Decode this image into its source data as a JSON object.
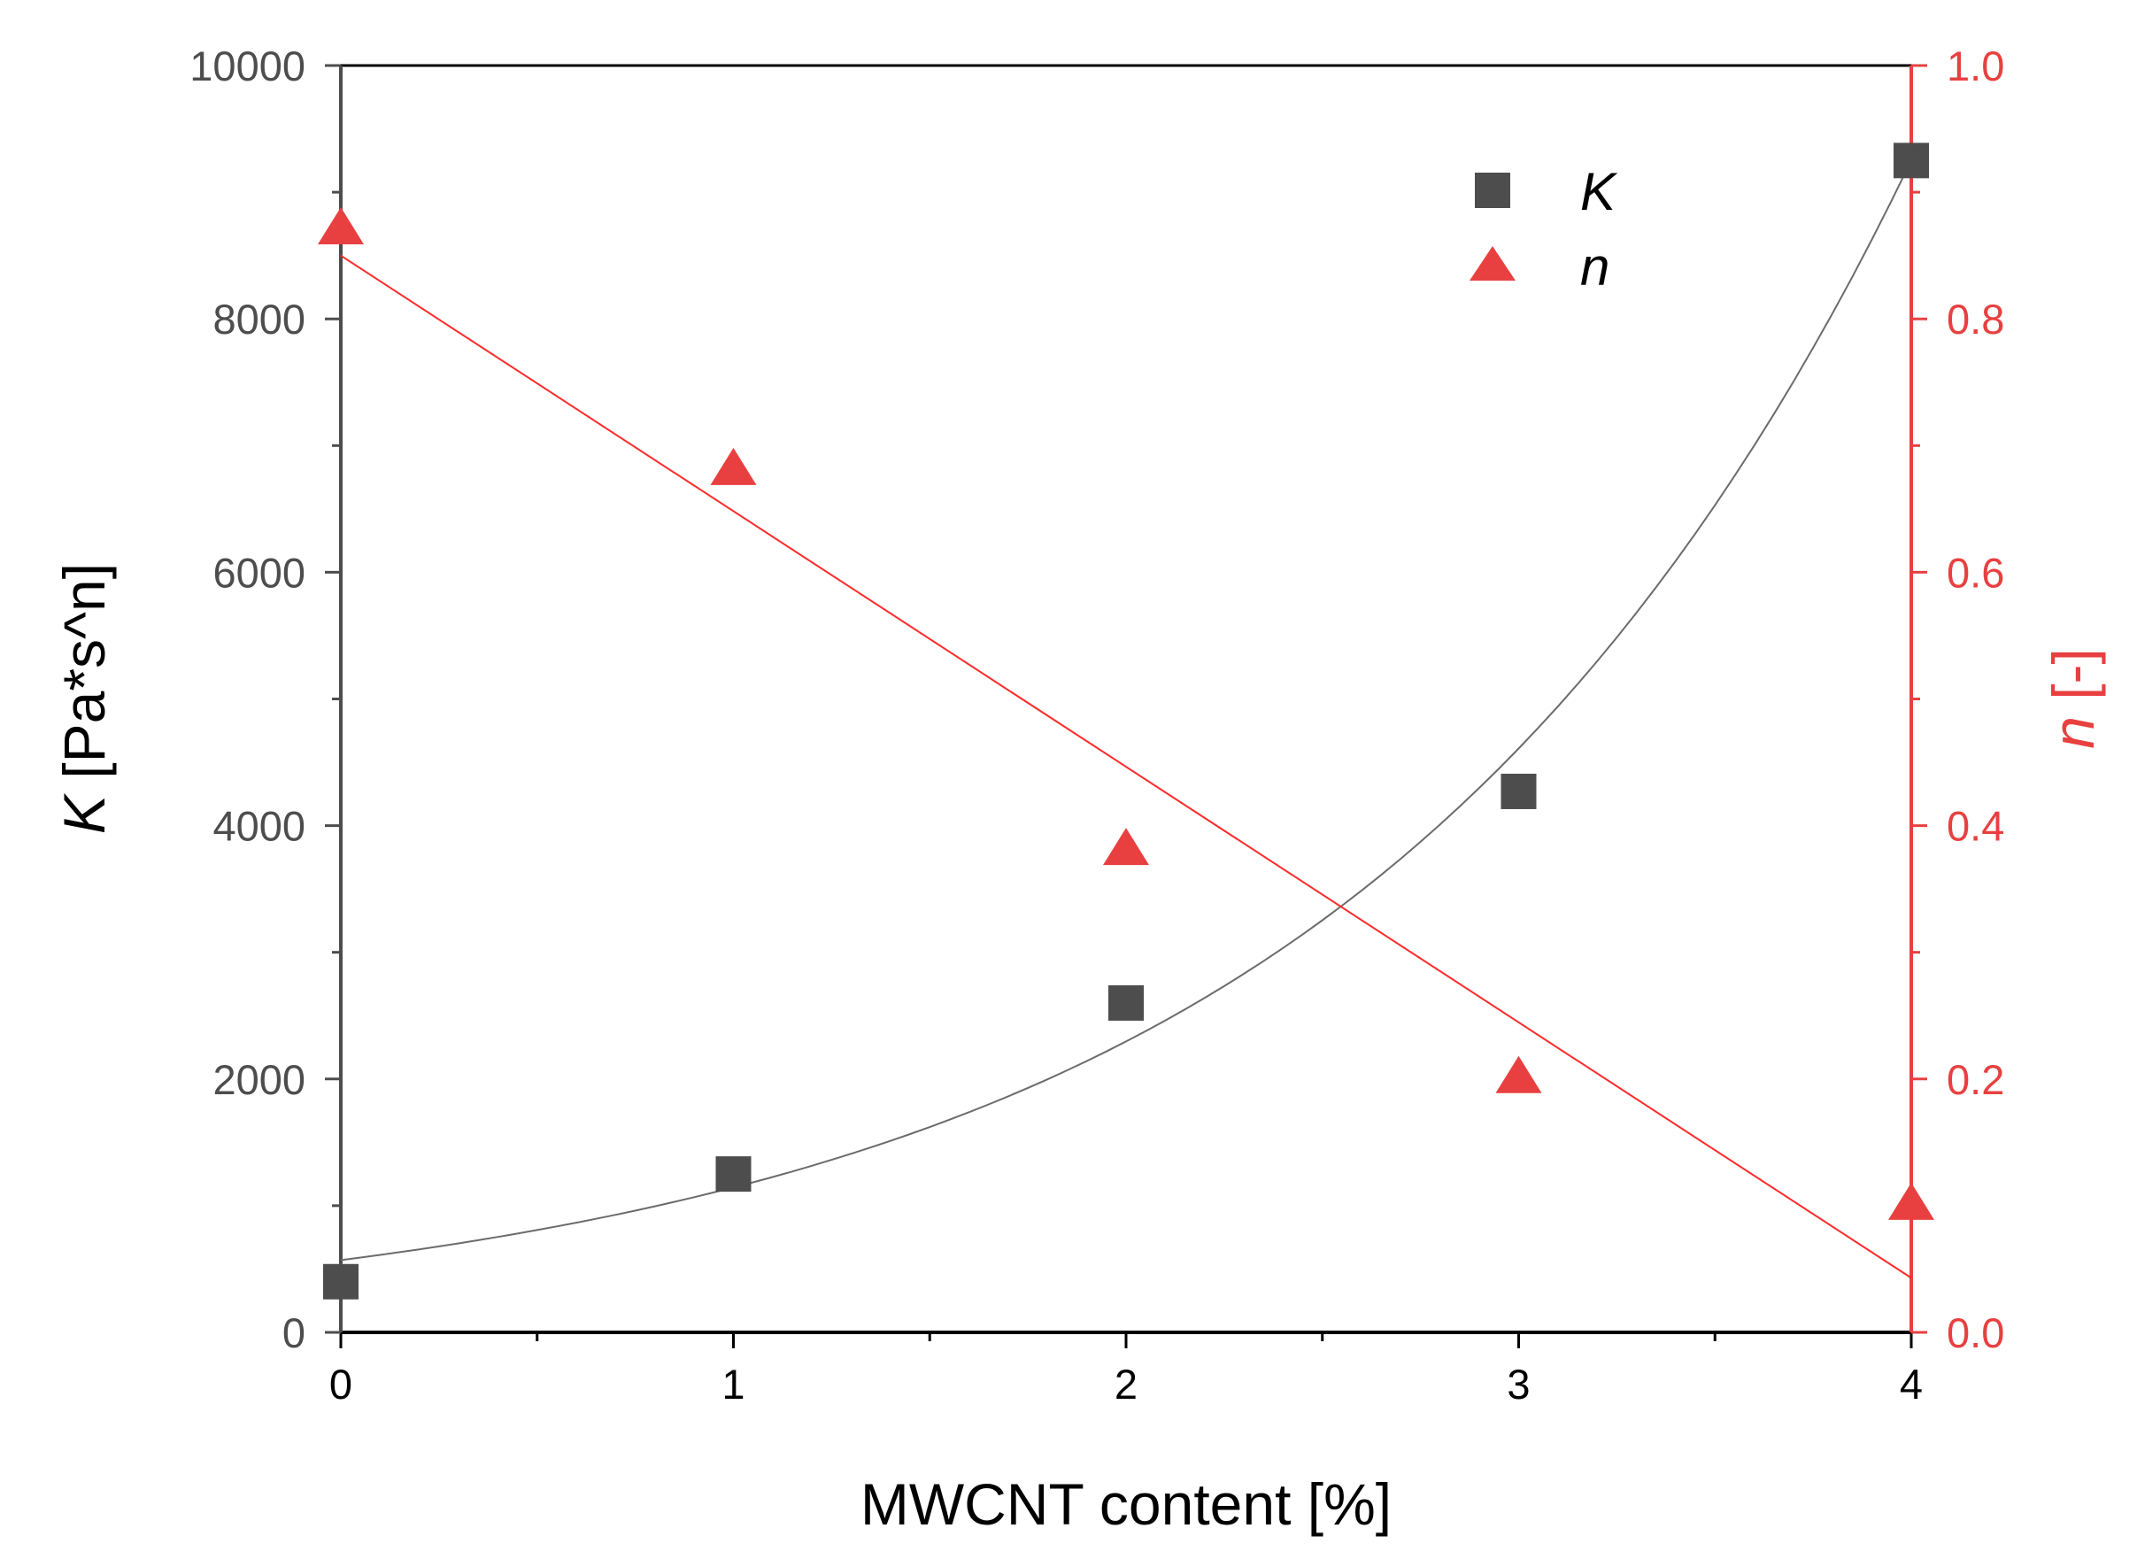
{
  "chart_data": {
    "type": "scatter",
    "xlabel": "MWCNT content [%]",
    "ylabel": {
      "symbol": "K",
      "rest": " [Pa*s^n]"
    },
    "y2label": {
      "symbol": "n",
      "rest": " [-]"
    },
    "xlim": [
      0,
      4
    ],
    "ylim": [
      0,
      10000
    ],
    "y2lim": [
      0.0,
      1.0
    ],
    "x_ticks": [
      "0",
      "1",
      "2",
      "3",
      "4"
    ],
    "y_ticks": [
      "0",
      "2000",
      "4000",
      "6000",
      "8000",
      "10000"
    ],
    "y2_ticks": [
      "0.0",
      "0.2",
      "0.4",
      "0.6",
      "0.8",
      "1.0"
    ],
    "grid": false,
    "legend_position": "top-right",
    "series": [
      {
        "name": "K",
        "axis": "left",
        "marker": "square",
        "color": "#4d4d4d",
        "x": [
          0,
          1,
          2,
          3,
          4
        ],
        "y": [
          400,
          1250,
          2600,
          4270,
          9250
        ],
        "fit": {
          "kind": "exponential",
          "x": [
            0,
            4
          ],
          "y_at_0": 570,
          "y_at_4": 9250
        }
      },
      {
        "name": "n",
        "axis": "right",
        "marker": "triangle",
        "color": "#e84040",
        "x": [
          0,
          1,
          2,
          3,
          4
        ],
        "y": [
          0.87,
          0.68,
          0.38,
          0.2,
          0.1
        ],
        "fit": {
          "kind": "linear",
          "x": [
            0,
            4
          ],
          "y": [
            0.85,
            0.043
          ]
        }
      }
    ],
    "colors": {
      "left_axis": "#4d4d4d",
      "right_axis": "#e84040",
      "K_fit": "#6b6b6b",
      "n_fit": "#ff2a2a"
    }
  }
}
